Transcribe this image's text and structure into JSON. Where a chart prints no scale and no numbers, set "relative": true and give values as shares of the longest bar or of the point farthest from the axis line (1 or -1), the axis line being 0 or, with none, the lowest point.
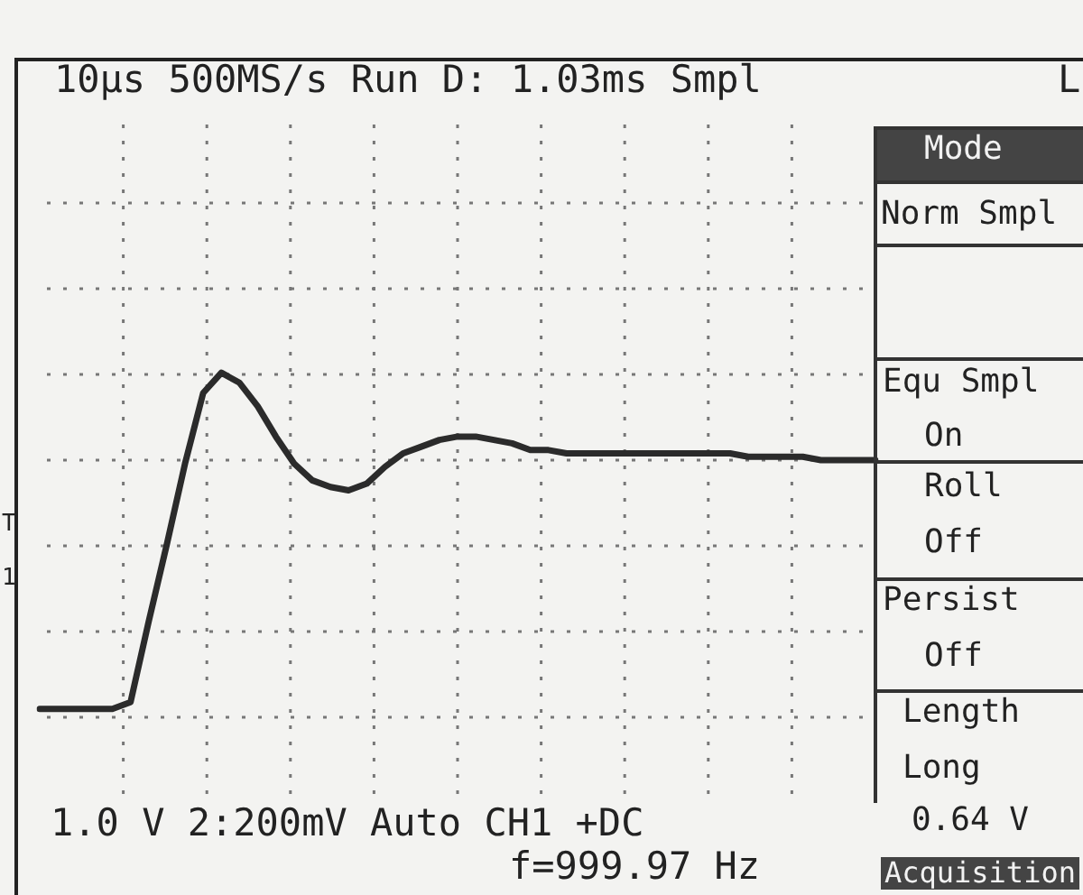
{
  "chart_data": {
    "type": "line",
    "title": "10μs  500MS/s Run D: 1.03ms Smpl",
    "relative": true,
    "grid": true,
    "legend": false,
    "marker": "none",
    "line_style": "solid",
    "categories": [
      null,
      null,
      null,
      null,
      null,
      null,
      null,
      null,
      null,
      null,
      null,
      null,
      null,
      null,
      null,
      null,
      null,
      null,
      null,
      null,
      null,
      null,
      null,
      null,
      null,
      null,
      null,
      null,
      null,
      null,
      null,
      null,
      null,
      null,
      null,
      null,
      null,
      null,
      null,
      null,
      null,
      null,
      null,
      null,
      null,
      null,
      null
    ],
    "series": [
      {
        "color": "#2b2b2b",
        "values": [
          0,
          0,
          0,
          0,
          0,
          0.02,
          0.26,
          0.49,
          0.73,
          0.94,
          1,
          0.97,
          0.9,
          0.81,
          0.73,
          0.68,
          0.66,
          0.65,
          0.67,
          0.72,
          0.76,
          0.78,
          0.8,
          0.81,
          0.81,
          0.8,
          0.79,
          0.77,
          0.77,
          0.76,
          0.76,
          0.76,
          0.76,
          0.76,
          0.76,
          0.76,
          0.76,
          0.76,
          0.76,
          0.75,
          0.75,
          0.75,
          0.75,
          0.74,
          0.74,
          0.74,
          0.74
        ]
      }
    ],
    "annotations": [
      "Mode",
      "Norm Smpl",
      "Equ Smpl",
      "On",
      "Roll",
      "Off",
      "Persist",
      "Off",
      "Length",
      "Long",
      "0.64 V",
      "Acquisition",
      "1.0 V   2:200mV   Auto CH1 +DC",
      "f=999.97 Hz",
      "L",
      "T",
      "1"
    ]
  }
}
